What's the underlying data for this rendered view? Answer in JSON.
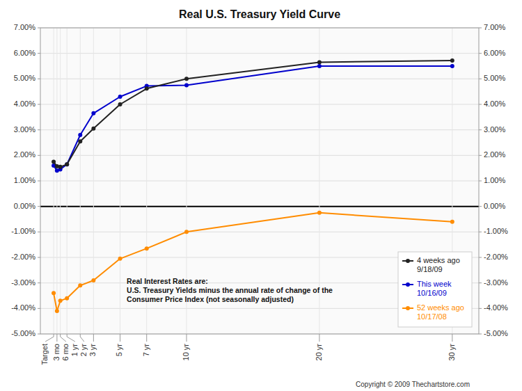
{
  "chart_data": {
    "type": "line",
    "title": "Real U.S. Treasury Yield Curve",
    "x": [
      0,
      0.25,
      0.5,
      1,
      2,
      3,
      5,
      7,
      10,
      20,
      30
    ],
    "xlim": [
      -1,
      32
    ],
    "xticks": [
      {
        "value": 0,
        "label": "Target"
      },
      {
        "value": 0.25,
        "label": "3 mo"
      },
      {
        "value": 0.5,
        "label": "6 mo"
      },
      {
        "value": 1,
        "label": "1 yr"
      },
      {
        "value": 2,
        "label": "2 yr"
      },
      {
        "value": 3,
        "label": "3 yr"
      },
      {
        "value": 5,
        "label": "5 yr"
      },
      {
        "value": 7,
        "label": "7 yr"
      },
      {
        "value": 10,
        "label": "10 yr"
      },
      {
        "value": 20,
        "label": "20 yr"
      },
      {
        "value": 30,
        "label": "30 yr"
      }
    ],
    "ylim": [
      -5.0,
      7.0
    ],
    "yticks": [
      {
        "value": -5.0,
        "label": "-5.00%"
      },
      {
        "value": -4.0,
        "label": "-4.00%"
      },
      {
        "value": -3.0,
        "label": "-3.00%"
      },
      {
        "value": -2.0,
        "label": "-2.00%"
      },
      {
        "value": -1.0,
        "label": "-1.00%"
      },
      {
        "value": 0.0,
        "label": "0.00%"
      },
      {
        "value": 1.0,
        "label": "1.00%"
      },
      {
        "value": 2.0,
        "label": "2.00%"
      },
      {
        "value": 3.0,
        "label": "3.00%"
      },
      {
        "value": 4.0,
        "label": "4.00%"
      },
      {
        "value": 5.0,
        "label": "5.00%"
      },
      {
        "value": 6.0,
        "label": "6.00%"
      },
      {
        "value": 7.0,
        "label": "7.00%"
      }
    ],
    "y2lim": [
      -5.0,
      7.0
    ],
    "y2ticks": [
      {
        "value": -5.0,
        "label": "-5.00%"
      },
      {
        "value": -4.0,
        "label": "-4.00%"
      },
      {
        "value": -3.0,
        "label": "-3.00%"
      },
      {
        "value": -2.0,
        "label": "-2.00%"
      },
      {
        "value": -1.0,
        "label": "-1.00%"
      },
      {
        "value": 0.0,
        "label": "0.00%"
      },
      {
        "value": 1.0,
        "label": "1.00%"
      },
      {
        "value": 2.0,
        "label": "2.00%"
      },
      {
        "value": 3.0,
        "label": "3.00%"
      },
      {
        "value": 4.0,
        "label": "4.00%"
      },
      {
        "value": 5.0,
        "label": "5.00%"
      },
      {
        "value": 6.0,
        "label": "6.00%"
      },
      {
        "value": 7.0,
        "label": "7.00%"
      }
    ],
    "grid": true,
    "legend": "lower right",
    "series": [
      {
        "name": "4 weeks ago\n9/18/09",
        "color": "#222222",
        "marker": "circle",
        "values": [
          1.75,
          1.57,
          1.55,
          1.65,
          2.55,
          3.05,
          4.0,
          4.62,
          5.0,
          5.65,
          5.72
        ]
      },
      {
        "name": "This week\n10/16/09",
        "color": "#0000CC",
        "marker": "circle",
        "values": [
          1.6,
          1.4,
          1.45,
          1.65,
          2.8,
          3.65,
          4.3,
          4.72,
          4.75,
          5.5,
          5.5
        ]
      },
      {
        "name": "52 weeks ago\n10/17/08",
        "color": "#FF8C00",
        "marker": "circle",
        "values": [
          -3.4,
          -4.1,
          -3.7,
          -3.6,
          -3.1,
          -2.9,
          -2.05,
          -1.65,
          -1.0,
          -0.25,
          -0.6
        ]
      }
    ],
    "annotations": [
      "Real Interest Rates are:\nU.S. Treasury Yields minus the annual rate of change of the\nConsumer Price Index (not seasonally adjusted)",
      "Copyright © 2009 Thechartstore.com"
    ]
  }
}
